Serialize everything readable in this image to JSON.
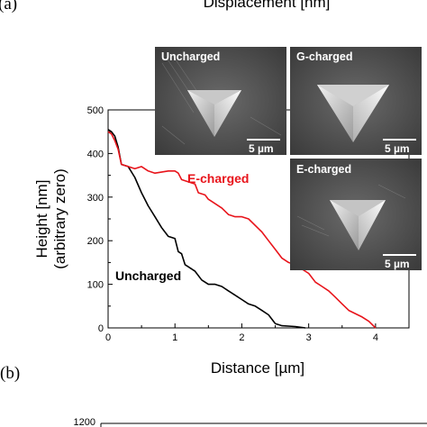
{
  "panels": {
    "a": "(a)",
    "b": "(b)"
  },
  "top_cut_label": "Displacement [nm]",
  "insets": [
    {
      "label": "Uncharged",
      "scale": "5 µm"
    },
    {
      "label": "G-charged",
      "scale": "5 µm"
    },
    {
      "label": "E-charged",
      "scale": "5 µm"
    }
  ],
  "colors": {
    "uncharged": "#000000",
    "e_charged": "#e8141b"
  },
  "chart_data": [
    {
      "type": "line",
      "title": "",
      "xlabel": "Distance [µm]",
      "ylabel_line1": "Height [nm]",
      "ylabel_line2": "(arbitrary zero)",
      "xlim": [
        0,
        4.5
      ],
      "ylim": [
        0,
        500
      ],
      "xticks": [
        0,
        1,
        2,
        3,
        4
      ],
      "yticks": [
        0,
        100,
        200,
        300,
        400,
        500
      ],
      "grid": false,
      "series": [
        {
          "name": "Uncharged",
          "color": "#000000",
          "x": [
            0,
            0.05,
            0.1,
            0.15,
            0.2,
            0.3,
            0.4,
            0.5,
            0.6,
            0.7,
            0.8,
            0.9,
            1.0,
            1.05,
            1.1,
            1.15,
            1.2,
            1.3,
            1.4,
            1.5,
            1.6,
            1.7,
            1.8,
            1.9,
            2.0,
            2.1,
            2.2,
            2.3,
            2.4,
            2.5,
            2.6,
            2.8,
            2.95
          ],
          "y": [
            455,
            450,
            440,
            415,
            375,
            370,
            345,
            310,
            280,
            255,
            230,
            210,
            205,
            175,
            170,
            145,
            140,
            130,
            110,
            100,
            100,
            95,
            85,
            75,
            65,
            55,
            50,
            40,
            30,
            10,
            5,
            3,
            0
          ]
        },
        {
          "name": "E-charged",
          "color": "#e8141b",
          "x": [
            0,
            0.05,
            0.1,
            0.15,
            0.2,
            0.3,
            0.4,
            0.5,
            0.6,
            0.7,
            0.9,
            1.0,
            1.05,
            1.1,
            1.2,
            1.3,
            1.35,
            1.45,
            1.5,
            1.55,
            1.7,
            1.8,
            1.9,
            2.0,
            2.1,
            2.3,
            2.4,
            2.5,
            2.6,
            2.7,
            2.8,
            2.9,
            3.0,
            3.1,
            3.2,
            3.3,
            3.4,
            3.5,
            3.6,
            3.8,
            3.9,
            4.0
          ],
          "y": [
            450,
            445,
            430,
            410,
            375,
            370,
            365,
            370,
            360,
            355,
            360,
            360,
            355,
            340,
            335,
            330,
            310,
            305,
            295,
            290,
            275,
            260,
            255,
            255,
            250,
            220,
            200,
            180,
            160,
            150,
            145,
            135,
            125,
            105,
            95,
            85,
            70,
            55,
            40,
            25,
            15,
            0
          ]
        }
      ]
    },
    {
      "type": "line",
      "title": "",
      "yticks_visible": [
        1200
      ],
      "series": []
    }
  ]
}
